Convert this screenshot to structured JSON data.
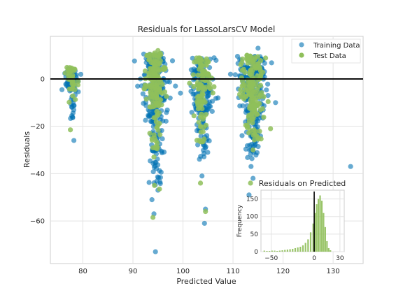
{
  "chart_data": {
    "type": "scatter",
    "title": "Residuals for LassoLarsCV Model",
    "xlabel": "Predicted Value",
    "ylabel": "Residuals",
    "xlim": [
      73.5,
      136
    ],
    "ylim": [
      -78,
      18
    ],
    "xticks": [
      80,
      90,
      100,
      110,
      120,
      130
    ],
    "yticks": [
      0,
      -20,
      -40,
      -60
    ],
    "grid": true,
    "zero_line": 0,
    "legend_position": "top-right",
    "series": [
      {
        "name": "Training Data",
        "color": "#0072B2",
        "clusters": [
          {
            "xc": 77.8,
            "xw": 1.5,
            "ycore": [
              -5,
              5
            ],
            "ytail": -17,
            "n": 70
          },
          {
            "xc": 94.5,
            "xw": 2.5,
            "ycore": [
              -18,
              11
            ],
            "ytail": -45,
            "n": 240
          },
          {
            "xc": 103.8,
            "xw": 2.2,
            "ycore": [
              -15,
              9
            ],
            "ytail": -34,
            "n": 160
          },
          {
            "xc": 113.8,
            "xw": 2.5,
            "ycore": [
              -16,
              10
            ],
            "ytail": -34,
            "n": 240
          }
        ],
        "outliers": [
          [
            78.2,
            -26
          ],
          [
            94.5,
            -73
          ],
          [
            94.2,
            -57
          ],
          [
            93.8,
            -51
          ],
          [
            95.0,
            -47
          ],
          [
            104.3,
            -61
          ],
          [
            103.8,
            -41
          ],
          [
            104.5,
            -55
          ],
          [
            113.2,
            -49
          ],
          [
            114.0,
            -42
          ],
          [
            113.6,
            -37
          ],
          [
            133.5,
            -37
          ],
          [
            118.5,
            -10
          ],
          [
            117.0,
            -7
          ],
          [
            112.0,
            6
          ],
          [
            115.0,
            13
          ],
          [
            107.0,
            -8
          ],
          [
            91.5,
            0
          ],
          [
            98.5,
            -3
          ],
          [
            99.5,
            -6
          ],
          [
            109.5,
            2
          ]
        ]
      },
      {
        "name": "Test Data",
        "color": "#8FBF5A",
        "clusters": [
          {
            "xc": 77.8,
            "xw": 1.2,
            "ycore": [
              -3,
              5
            ],
            "ytail": -10,
            "n": 40
          },
          {
            "xc": 94.5,
            "xw": 2.0,
            "ycore": [
              -12,
              11
            ],
            "ytail": -30,
            "n": 160
          },
          {
            "xc": 103.8,
            "xw": 1.8,
            "ycore": [
              -10,
              9
            ],
            "ytail": -28,
            "n": 110
          },
          {
            "xc": 113.8,
            "xw": 2.2,
            "ycore": [
              -14,
              10
            ],
            "ytail": -26,
            "n": 170
          }
        ],
        "outliers": [
          [
            77.5,
            -21.5
          ],
          [
            94.0,
            -58.5
          ],
          [
            95.3,
            -46.5
          ],
          [
            94.3,
            -45
          ],
          [
            104.5,
            -56
          ],
          [
            103.5,
            -44
          ],
          [
            94.2,
            -33
          ],
          [
            113.5,
            -44
          ],
          [
            114.0,
            -30
          ],
          [
            117.5,
            -21
          ],
          [
            95.0,
            12
          ]
        ]
      }
    ],
    "inset": {
      "title": "Residuals on Predicted",
      "ylabel": "Frequency",
      "xlim": [
        -62,
        35
      ],
      "ylim": [
        0,
        175
      ],
      "xticks": [
        -50,
        0,
        30
      ],
      "xtick_labels": [
        "−50",
        "0",
        "30"
      ],
      "yticks": [
        0,
        50,
        100,
        150
      ],
      "zero_line": 0,
      "bars": [
        {
          "x": -58,
          "h": 3
        },
        {
          "x": -55,
          "h": 2
        },
        {
          "x": -52,
          "h": 2
        },
        {
          "x": -49,
          "h": 3
        },
        {
          "x": -46,
          "h": 3
        },
        {
          "x": -43,
          "h": 2
        },
        {
          "x": -40,
          "h": 3
        },
        {
          "x": -37,
          "h": 4
        },
        {
          "x": -34,
          "h": 5
        },
        {
          "x": -31,
          "h": 6
        },
        {
          "x": -28,
          "h": 7
        },
        {
          "x": -25,
          "h": 8
        },
        {
          "x": -22,
          "h": 10
        },
        {
          "x": -19,
          "h": 12
        },
        {
          "x": -16,
          "h": 14
        },
        {
          "x": -13,
          "h": 18
        },
        {
          "x": -10,
          "h": 25
        },
        {
          "x": -7,
          "h": 35
        },
        {
          "x": -4,
          "h": 55
        },
        {
          "x": -1,
          "h": 80
        },
        {
          "x": 1,
          "h": 110
        },
        {
          "x": 3,
          "h": 135
        },
        {
          "x": 5,
          "h": 150
        },
        {
          "x": 7,
          "h": 160
        },
        {
          "x": 9,
          "h": 145
        },
        {
          "x": 11,
          "h": 110
        },
        {
          "x": 13,
          "h": 70
        },
        {
          "x": 15,
          "h": 30
        },
        {
          "x": 17,
          "h": 10
        },
        {
          "x": 19,
          "h": 4
        }
      ]
    }
  }
}
